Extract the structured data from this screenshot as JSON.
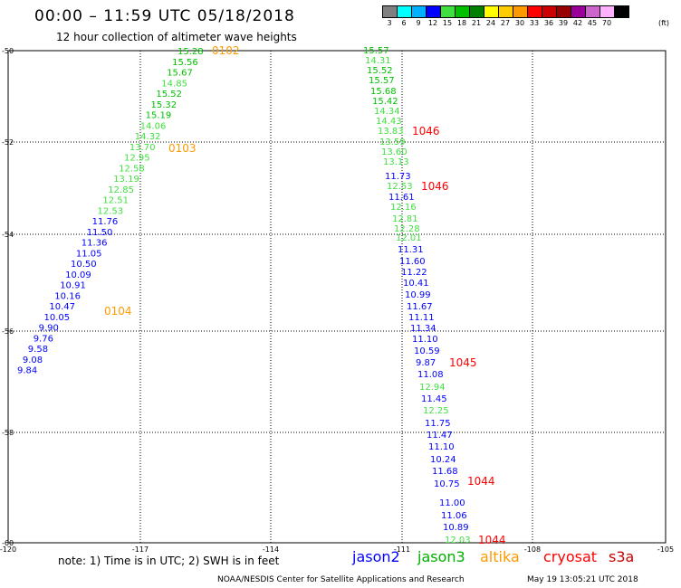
{
  "header": {
    "title": "00:00 – 11:59 UTC 05/18/2018",
    "subtitle": "12 hour collection of altimeter wave heights"
  },
  "color_scale": {
    "unit": "(ft)",
    "bins": [
      {
        "label": "3",
        "color": "#808080"
      },
      {
        "label": "6",
        "color": "#00ffff"
      },
      {
        "label": "9",
        "color": "#00b0ff"
      },
      {
        "label": "12",
        "color": "#0000ff"
      },
      {
        "label": "15",
        "color": "#40e040"
      },
      {
        "label": "18",
        "color": "#00c000"
      },
      {
        "label": "21",
        "color": "#008000"
      },
      {
        "label": "24",
        "color": "#ffff00"
      },
      {
        "label": "27",
        "color": "#ffcc00"
      },
      {
        "label": "30",
        "color": "#ff9900"
      },
      {
        "label": "33",
        "color": "#ff0000"
      },
      {
        "label": "36",
        "color": "#cc0000"
      },
      {
        "label": "39",
        "color": "#990000"
      },
      {
        "label": "42",
        "color": "#990099"
      },
      {
        "label": "45",
        "color": "#cc66cc"
      },
      {
        "label": "70",
        "color": "#ffb0ff"
      },
      {
        "label": "",
        "color": "#000000"
      }
    ]
  },
  "map": {
    "lat_labels": [
      "-50",
      "-52",
      "-54",
      "-56",
      "-58",
      "-60"
    ],
    "lon_labels": [
      "-120",
      "-117",
      "-114",
      "-111",
      "-108",
      "-105"
    ],
    "tracks": [
      {
        "observations": [
          {
            "v": "15.28",
            "c": "#00c000"
          },
          {
            "v": "15.56",
            "c": "#00c000"
          },
          {
            "v": "15.67",
            "c": "#00c000"
          },
          {
            "v": "14.85",
            "c": "#40e040"
          },
          {
            "v": "15.52",
            "c": "#00c000"
          },
          {
            "v": "15.32",
            "c": "#00c000"
          },
          {
            "v": "15.19",
            "c": "#00c000"
          },
          {
            "v": "14.06",
            "c": "#40e040"
          },
          {
            "v": "14.32",
            "c": "#40e040"
          },
          {
            "v": "13.70",
            "c": "#40e040"
          },
          {
            "v": "12.95",
            "c": "#40e040"
          },
          {
            "v": "12.58",
            "c": "#40e040"
          },
          {
            "v": "13.19",
            "c": "#40e040"
          },
          {
            "v": "12.85",
            "c": "#40e040"
          },
          {
            "v": "12.51",
            "c": "#40e040"
          },
          {
            "v": "12.53",
            "c": "#40e040"
          },
          {
            "v": "11.76",
            "c": "#0000ff"
          },
          {
            "v": "11.50",
            "c": "#0000ff"
          },
          {
            "v": "11.36",
            "c": "#0000ff"
          },
          {
            "v": "11.05",
            "c": "#0000ff"
          },
          {
            "v": "10.50",
            "c": "#0000ff"
          },
          {
            "v": "10.09",
            "c": "#0000ff"
          },
          {
            "v": "10.91",
            "c": "#0000ff"
          },
          {
            "v": "10.16",
            "c": "#0000ff"
          },
          {
            "v": "10.47",
            "c": "#0000ff"
          },
          {
            "v": "10.05",
            "c": "#0000ff"
          },
          {
            "v": "9.90",
            "c": "#0000ff"
          },
          {
            "v": "9.76",
            "c": "#0000ff"
          },
          {
            "v": "9.58",
            "c": "#0000ff"
          },
          {
            "v": "9.08",
            "c": "#0000ff"
          },
          {
            "v": "9.84",
            "c": "#0000ff"
          }
        ],
        "times": [
          {
            "t": "0102",
            "c": "#ff9900"
          },
          {
            "t": "0103",
            "c": "#ff9900"
          },
          {
            "t": "0104",
            "c": "#ff9900"
          }
        ]
      },
      {
        "observations": [
          {
            "v": "15.57",
            "c": "#00c000"
          },
          {
            "v": "14.31",
            "c": "#40e040"
          },
          {
            "v": "15.52",
            "c": "#00c000"
          },
          {
            "v": "15.57",
            "c": "#00c000"
          },
          {
            "v": "15.68",
            "c": "#00c000"
          },
          {
            "v": "15.42",
            "c": "#00c000"
          },
          {
            "v": "14.34",
            "c": "#40e040"
          },
          {
            "v": "14.43",
            "c": "#40e040"
          },
          {
            "v": "13.83",
            "c": "#40e040"
          },
          {
            "v": "13.59",
            "c": "#40e040"
          },
          {
            "v": "13.60",
            "c": "#40e040"
          },
          {
            "v": "13.13",
            "c": "#40e040"
          },
          {
            "v": "11.73",
            "c": "#0000ff"
          },
          {
            "v": "12.53",
            "c": "#40e040"
          },
          {
            "v": "11.61",
            "c": "#0000ff"
          },
          {
            "v": "12.16",
            "c": "#40e040"
          },
          {
            "v": "12.81",
            "c": "#40e040"
          },
          {
            "v": "12.28",
            "c": "#40e040"
          },
          {
            "v": "12.01",
            "c": "#40e040"
          },
          {
            "v": "11.31",
            "c": "#0000ff"
          },
          {
            "v": "11.60",
            "c": "#0000ff"
          },
          {
            "v": "11.22",
            "c": "#0000ff"
          },
          {
            "v": "10.41",
            "c": "#0000ff"
          },
          {
            "v": "10.99",
            "c": "#0000ff"
          },
          {
            "v": "11.67",
            "c": "#0000ff"
          },
          {
            "v": "11.11",
            "c": "#0000ff"
          },
          {
            "v": "11.34",
            "c": "#0000ff"
          },
          {
            "v": "11.10",
            "c": "#0000ff"
          },
          {
            "v": "10.59",
            "c": "#0000ff"
          },
          {
            "v": "9.87",
            "c": "#0000ff"
          },
          {
            "v": "11.08",
            "c": "#0000ff"
          },
          {
            "v": "12.94",
            "c": "#40e040"
          },
          {
            "v": "11.45",
            "c": "#0000ff"
          },
          {
            "v": "12.25",
            "c": "#40e040"
          },
          {
            "v": "11.75",
            "c": "#0000ff"
          },
          {
            "v": "11.47",
            "c": "#0000ff"
          },
          {
            "v": "11.10",
            "c": "#0000ff"
          },
          {
            "v": "10.24",
            "c": "#0000ff"
          },
          {
            "v": "11.68",
            "c": "#0000ff"
          },
          {
            "v": "10.75",
            "c": "#0000ff"
          },
          {
            "v": "11.00",
            "c": "#0000ff"
          },
          {
            "v": "11.06",
            "c": "#0000ff"
          },
          {
            "v": "10.89",
            "c": "#0000ff"
          },
          {
            "v": "12.03",
            "c": "#40e040"
          }
        ],
        "times": [
          {
            "t": "1046",
            "c": "#ff0000"
          },
          {
            "t": "1046",
            "c": "#ff0000"
          },
          {
            "t": "1045",
            "c": "#ff0000"
          },
          {
            "t": "1044",
            "c": "#ff0000"
          },
          {
            "t": "1044",
            "c": "#ff0000"
          }
        ]
      }
    ]
  },
  "note": "note: 1) Time is in UTC; 2) SWH is in feet",
  "legend": [
    {
      "name": "jason2",
      "color": "#0000ff"
    },
    {
      "name": "jason3",
      "color": "#00b000"
    },
    {
      "name": "altika",
      "color": "#ff9900"
    },
    {
      "name": "cryosat",
      "color": "#ff0000"
    },
    {
      "name": "s3a",
      "color": "#cc0000"
    }
  ],
  "footer": {
    "credit": "NOAA/NESDIS Center for Satellite Applications and Research",
    "timestamp": "May 19 13:05:21 UTC 2018"
  }
}
